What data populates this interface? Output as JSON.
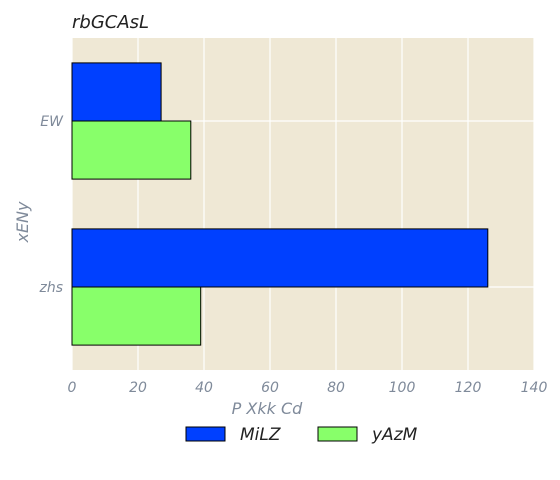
{
  "chart_data": {
    "type": "bar",
    "orientation": "horizontal",
    "title": "rbGCAsL",
    "xlabel": "P  Xkk Cd",
    "ylabel": "xENy",
    "categories": [
      "EW",
      "zhs"
    ],
    "series": [
      {
        "name": "MiLZ",
        "values": [
          27,
          126
        ],
        "color": "#0040ff"
      },
      {
        "name": "yAzM",
        "values": [
          36,
          39
        ],
        "color": "#88ff6a"
      }
    ],
    "xlim": [
      0,
      140
    ],
    "xticks": [
      0,
      20,
      40,
      60,
      80,
      100,
      120,
      140
    ],
    "grid": true,
    "legend_position": "bottom-center",
    "background_color": "#efe8d5",
    "grid_color": "#ffffff"
  }
}
